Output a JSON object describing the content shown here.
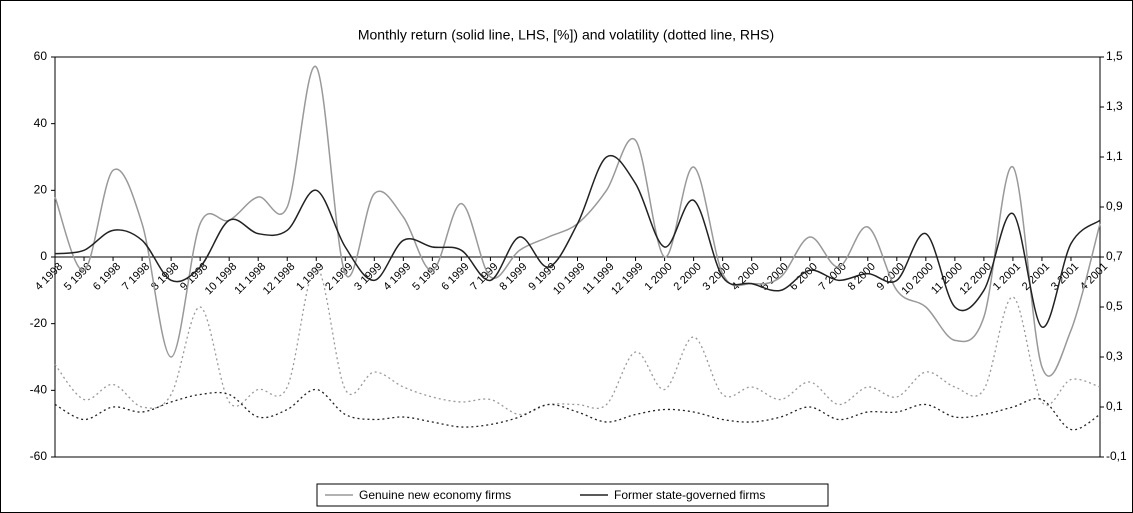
{
  "chart_data": {
    "type": "line",
    "title": "Monthly return (solid line, LHS, [%]) and volatility (dotted line, RHS)",
    "categories": [
      "4 1998",
      "5 1998",
      "6 1998",
      "7 1998",
      "8 1998",
      "9 1998",
      "10 1998",
      "11 1998",
      "12 1998",
      "1 1999",
      "2 1999",
      "3 1999",
      "4 1999",
      "5 1999",
      "6 1999",
      "7 1999",
      "8 1999",
      "9 1999",
      "10 1999",
      "11 1999",
      "12 1999",
      "1 2000",
      "2 2000",
      "3 2000",
      "4 2000",
      "5 2000",
      "6 2000",
      "7 2000",
      "8 2000",
      "9 2000",
      "10 2000",
      "11 2000",
      "12 2000",
      "1 2001",
      "2 2001",
      "3 2001",
      "4 2001"
    ],
    "series": [
      {
        "name": "Genuine new economy firms",
        "color": "#999999",
        "dashed": false,
        "values": [
          18,
          -4,
          26,
          10,
          -30,
          10,
          11,
          18,
          15,
          57,
          -5,
          19,
          12,
          -4,
          16,
          -6,
          2,
          6,
          10,
          20,
          35,
          0,
          27,
          -5,
          -8,
          -6,
          6,
          -3,
          9,
          -10,
          -15,
          -25,
          -18,
          27,
          -33,
          -22,
          10
        ]
      },
      {
        "name": "Former state-governed firms",
        "color": "#222222",
        "dashed": false,
        "values": [
          1,
          2,
          8,
          5,
          -7,
          -3,
          11,
          7,
          8,
          20,
          3,
          -7,
          5,
          3,
          2,
          -7,
          6,
          -3,
          10,
          30,
          22,
          3,
          17,
          -6,
          -8,
          -10,
          -4,
          -7,
          -5,
          -7,
          7,
          -15,
          -10,
          13,
          -21,
          4,
          11
        ]
      },
      {
        "color": "#999999",
        "dashed": true,
        "axis": "y2",
        "values": [
          0.27,
          0.13,
          0.19,
          0.1,
          0.15,
          0.5,
          0.12,
          0.17,
          0.18,
          0.66,
          0.17,
          0.24,
          0.18,
          0.14,
          0.12,
          0.13,
          0.07,
          0.11,
          0.11,
          0.11,
          0.32,
          0.17,
          0.38,
          0.15,
          0.18,
          0.13,
          0.2,
          0.11,
          0.18,
          0.14,
          0.24,
          0.18,
          0.17,
          0.54,
          0.12,
          0.21,
          0.18
        ]
      },
      {
        "color": "#222222",
        "dashed": true,
        "axis": "y2",
        "values": [
          0.11,
          0.05,
          0.1,
          0.08,
          0.12,
          0.15,
          0.15,
          0.06,
          0.09,
          0.17,
          0.07,
          0.05,
          0.06,
          0.04,
          0.02,
          0.03,
          0.06,
          0.11,
          0.08,
          0.04,
          0.07,
          0.09,
          0.08,
          0.05,
          0.04,
          0.06,
          0.1,
          0.05,
          0.08,
          0.08,
          0.11,
          0.06,
          0.07,
          0.1,
          0.13,
          0.01,
          0.07
        ]
      }
    ],
    "ylim": [
      -60,
      60
    ],
    "yticks": [
      -60,
      -40,
      -20,
      0,
      20,
      40,
      60
    ],
    "y2lim": [
      -0.1,
      1.5
    ],
    "y2ticks": [
      {
        "value": -0.1,
        "label": "-0,1"
      },
      {
        "value": 0.1,
        "label": "0,1"
      },
      {
        "value": 0.3,
        "label": "0,3"
      },
      {
        "value": 0.5,
        "label": "0,5"
      },
      {
        "value": 0.7,
        "label": "0,7"
      },
      {
        "value": 0.9,
        "label": "0,9"
      },
      {
        "value": 1.1,
        "label": "1,1"
      },
      {
        "value": 1.3,
        "label": "1,3"
      },
      {
        "value": 1.5,
        "label": "1,5"
      }
    ],
    "legend": "bottom"
  }
}
